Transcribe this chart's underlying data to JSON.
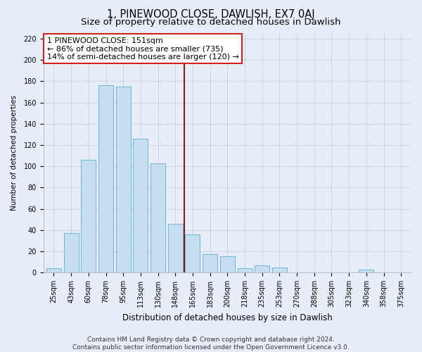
{
  "title": "1, PINEWOOD CLOSE, DAWLISH, EX7 0AJ",
  "subtitle": "Size of property relative to detached houses in Dawlish",
  "xlabel": "Distribution of detached houses by size in Dawlish",
  "ylabel": "Number of detached properties",
  "categories": [
    "25sqm",
    "43sqm",
    "60sqm",
    "78sqm",
    "95sqm",
    "113sqm",
    "130sqm",
    "148sqm",
    "165sqm",
    "183sqm",
    "200sqm",
    "218sqm",
    "235sqm",
    "253sqm",
    "270sqm",
    "288sqm",
    "305sqm",
    "323sqm",
    "340sqm",
    "358sqm",
    "375sqm"
  ],
  "values": [
    4,
    37,
    106,
    176,
    175,
    126,
    103,
    46,
    36,
    17,
    15,
    4,
    7,
    5,
    0,
    0,
    0,
    0,
    3,
    0,
    0
  ],
  "bar_color": "#c5dff0",
  "bar_edge_color": "#7ab8d4",
  "vline_x": 7.5,
  "vline_color": "#8b1a1a",
  "annotation_line1": "1 PINEWOOD CLOSE: 151sqm",
  "annotation_line2": "← 86% of detached houses are smaller (735)",
  "annotation_line3": "14% of semi-detached houses are larger (120) →",
  "ylim": [
    0,
    225
  ],
  "yticks": [
    0,
    20,
    40,
    60,
    80,
    100,
    120,
    140,
    160,
    180,
    200,
    220
  ],
  "figure_bg_color": "#e8eef8",
  "plot_bg_color": "#e8eef8",
  "grid_color": "#c8d4e8",
  "footer_line1": "Contains HM Land Registry data © Crown copyright and database right 2024.",
  "footer_line2": "Contains public sector information licensed under the Open Government Licence v3.0.",
  "title_fontsize": 10.5,
  "subtitle_fontsize": 9.5,
  "tick_fontsize": 7,
  "xlabel_fontsize": 8.5,
  "ylabel_fontsize": 7.5,
  "annotation_fontsize": 8,
  "footer_fontsize": 6.5
}
